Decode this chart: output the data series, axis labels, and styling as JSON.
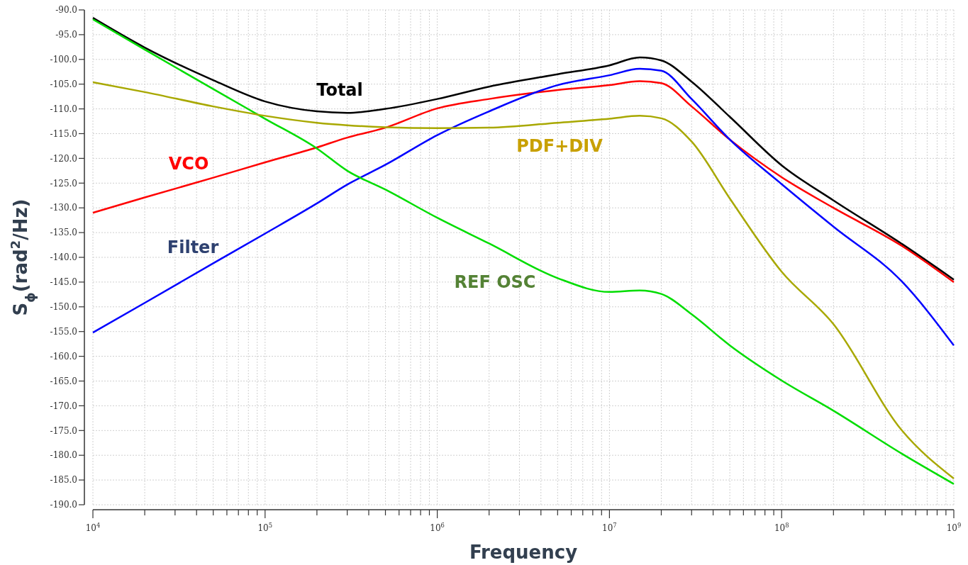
{
  "chart_data": {
    "type": "line",
    "xlabel": "Frequency",
    "ylabel": "S$_{ϕ}$(rad$^{2}$/Hz)",
    "log": "x",
    "grid": true,
    "line_style": "solid",
    "marker": "none",
    "x": [
      10000,
      20000,
      50000,
      100000,
      200000,
      300000,
      500000,
      1000000,
      2000000,
      5000000,
      10000000,
      15000000,
      20000000,
      30000000,
      50000000,
      100000000,
      200000000,
      500000000,
      1000000000
    ],
    "xlim": [
      10000,
      1000000000
    ],
    "xticks": [
      {
        "value": 10000,
        "label": "10$^{4}$"
      },
      {
        "value": 20000,
        "label": null
      },
      {
        "value": 30000,
        "label": null
      },
      {
        "value": 40000,
        "label": null
      },
      {
        "value": 50000,
        "label": null
      },
      {
        "value": 60000,
        "label": null
      },
      {
        "value": 70000,
        "label": null
      },
      {
        "value": 80000,
        "label": null
      },
      {
        "value": 90000,
        "label": null
      },
      {
        "value": 100000,
        "label": "10$^{5}$"
      },
      {
        "value": 200000,
        "label": null
      },
      {
        "value": 300000,
        "label": null
      },
      {
        "value": 400000,
        "label": null
      },
      {
        "value": 500000,
        "label": null
      },
      {
        "value": 600000,
        "label": null
      },
      {
        "value": 700000,
        "label": null
      },
      {
        "value": 800000,
        "label": null
      },
      {
        "value": 900000,
        "label": null
      },
      {
        "value": 1000000,
        "label": "10$^{6}$"
      },
      {
        "value": 2000000,
        "label": null
      },
      {
        "value": 3000000,
        "label": null
      },
      {
        "value": 4000000,
        "label": null
      },
      {
        "value": 5000000,
        "label": null
      },
      {
        "value": 6000000,
        "label": null
      },
      {
        "value": 7000000,
        "label": null
      },
      {
        "value": 8000000,
        "label": null
      },
      {
        "value": 9000000,
        "label": null
      },
      {
        "value": 10000000,
        "label": "10$^{7}$"
      },
      {
        "value": 20000000,
        "label": null
      },
      {
        "value": 30000000,
        "label": null
      },
      {
        "value": 40000000,
        "label": null
      },
      {
        "value": 50000000,
        "label": null
      },
      {
        "value": 60000000,
        "label": null
      },
      {
        "value": 70000000,
        "label": null
      },
      {
        "value": 80000000,
        "label": null
      },
      {
        "value": 90000000,
        "label": null
      },
      {
        "value": 100000000,
        "label": "10$^{8}$"
      },
      {
        "value": 200000000,
        "label": null
      },
      {
        "value": 300000000,
        "label": null
      },
      {
        "value": 400000000,
        "label": null
      },
      {
        "value": 500000000,
        "label": null
      },
      {
        "value": 600000000,
        "label": null
      },
      {
        "value": 700000000,
        "label": null
      },
      {
        "value": 800000000,
        "label": null
      },
      {
        "value": 900000000,
        "label": null
      },
      {
        "value": 1000000000,
        "label": "10$^{9}$"
      }
    ],
    "ylim": [
      -190,
      -90
    ],
    "yticks": [
      {
        "value": -90,
        "label": "-90.0"
      },
      {
        "value": -95,
        "label": "-95.0"
      },
      {
        "value": -100,
        "label": "-100.0"
      },
      {
        "value": -105,
        "label": "-105.0"
      },
      {
        "value": -110,
        "label": "-110.0"
      },
      {
        "value": -115,
        "label": "-115.0"
      },
      {
        "value": -120,
        "label": "-120.0"
      },
      {
        "value": -125,
        "label": "-125.0"
      },
      {
        "value": -130,
        "label": "-130.0"
      },
      {
        "value": -135,
        "label": "-135.0"
      },
      {
        "value": -140,
        "label": "-140.0"
      },
      {
        "value": -145,
        "label": "-145.0"
      },
      {
        "value": -150,
        "label": "-150.0"
      },
      {
        "value": -155,
        "label": "-155.0"
      },
      {
        "value": -160,
        "label": "-160.0"
      },
      {
        "value": -165,
        "label": "-165.0"
      },
      {
        "value": -170,
        "label": "-170.0"
      },
      {
        "value": -175,
        "label": "-175.0"
      },
      {
        "value": -180,
        "label": "-180.0"
      },
      {
        "value": -185,
        "label": "-185.0"
      },
      {
        "value": -190,
        "label": "-190.0"
      }
    ],
    "series": [
      {
        "name": "Total",
        "color": "#000000",
        "values": [
          -91.6,
          -97.6,
          -104.2,
          -108.5,
          -110.5,
          -110.8,
          -110,
          -108,
          -105.5,
          -103,
          -101.2,
          -99.6,
          -100.2,
          -104.5,
          -111.6,
          -121.4,
          -128.5,
          -137.3,
          -144.5
        ]
      },
      {
        "name": "VCO",
        "color": "#ff0000",
        "values": [
          -131,
          -127.9,
          -123.9,
          -120.8,
          -117.8,
          -115.8,
          -113.8,
          -109.9,
          -108,
          -106.2,
          -105.2,
          -104.4,
          -104.8,
          -109.5,
          -116.2,
          -123.8,
          -130,
          -137.7,
          -145
        ]
      },
      {
        "name": "Filter",
        "color": "#0000ff",
        "values": [
          -155.2,
          -149.2,
          -141.2,
          -135.2,
          -129.1,
          -125.3,
          -121.3,
          -115.3,
          -110.5,
          -105.2,
          -103.2,
          -101.9,
          -102.3,
          -108,
          -116.2,
          -125.2,
          -133.8,
          -144.9,
          -157.8
        ]
      },
      {
        "name": "REF OSC",
        "color": "#00dd00",
        "values": [
          -91.9,
          -98,
          -106,
          -112,
          -118,
          -122.5,
          -126.3,
          -132,
          -137.2,
          -144.2,
          -147,
          -146.7,
          -147.4,
          -151.5,
          -157.8,
          -164.9,
          -171,
          -179.7,
          -185.8
        ]
      },
      {
        "name": "PDF+DIV",
        "color": "#a8a800",
        "values": [
          -104.6,
          -106.6,
          -109.5,
          -111.4,
          -112.8,
          -113.3,
          -113.7,
          -113.9,
          -113.8,
          -112.8,
          -112,
          -111.4,
          -111.9,
          -116.6,
          -128.1,
          -142.9,
          -153.5,
          -175,
          -184.7
        ]
      }
    ]
  }
}
